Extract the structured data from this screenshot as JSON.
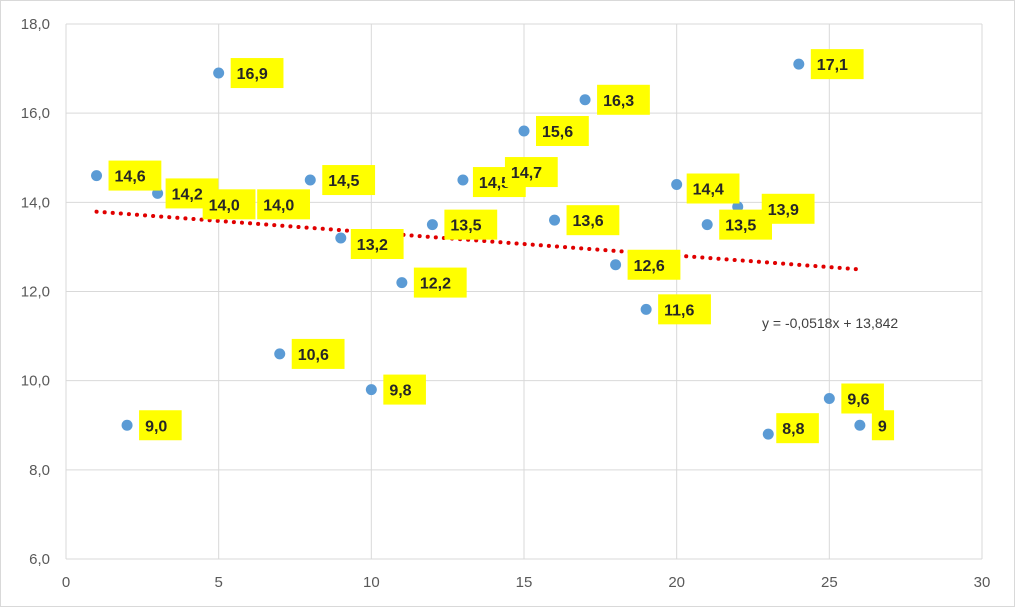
{
  "chart_data": {
    "type": "scatter",
    "title": "",
    "xlabel": "",
    "ylabel": "",
    "xlim": [
      0,
      30
    ],
    "ylim": [
      6,
      18
    ],
    "x_ticks": [
      "0",
      "5",
      "10",
      "15",
      "20",
      "25",
      "30"
    ],
    "y_ticks": [
      "6,0",
      "8,0",
      "10,0",
      "12,0",
      "14,0",
      "16,0",
      "18,0"
    ],
    "grid": true,
    "legend": "none",
    "colors": {
      "marker": "#5b9bd5",
      "trendline": "#e00000",
      "label_background": "#ffff00",
      "grid": "#d9d9d9"
    },
    "series": [
      {
        "points": [
          {
            "x": 1,
            "y": 14.6,
            "label": "14,6"
          },
          {
            "x": 2,
            "y": 9.0,
            "label": "9,0"
          },
          {
            "x": 3,
            "y": 14.2,
            "label": "14,2"
          },
          {
            "x": 5,
            "y": 16.9,
            "label": "16,9"
          },
          {
            "x": 5,
            "y": 14.0,
            "label": "14,0"
          },
          {
            "x": 6,
            "y": 14.0,
            "label": "14,0"
          },
          {
            "x": 7,
            "y": 10.6,
            "label": "10,6"
          },
          {
            "x": 8,
            "y": 14.5,
            "label": "14,5"
          },
          {
            "x": 9,
            "y": 13.2,
            "label": "13,2"
          },
          {
            "x": 10,
            "y": 9.8,
            "label": "9,8"
          },
          {
            "x": 11,
            "y": 12.2,
            "label": "12,2"
          },
          {
            "x": 12,
            "y": 13.5,
            "label": "13,5"
          },
          {
            "x": 13,
            "y": 14.5,
            "label": "14,5"
          },
          {
            "x": 15,
            "y": 15.6,
            "label": "15,6"
          },
          {
            "x": 16,
            "y": 13.6,
            "label": "13,6"
          },
          {
            "x": 17,
            "y": 16.3,
            "label": "16,3"
          },
          {
            "x": 18,
            "y": 12.6,
            "label": "12,6"
          },
          {
            "x": 19,
            "y": 11.6,
            "label": "11,6"
          },
          {
            "x": 20,
            "y": 14.4,
            "label": "14,4"
          },
          {
            "x": 21,
            "y": 13.5,
            "label": "13,5"
          },
          {
            "x": 22,
            "y": 13.9,
            "label": "13,9"
          },
          {
            "x": 23,
            "y": 8.8,
            "label": "8,8"
          },
          {
            "x": 24,
            "y": 17.1,
            "label": "17,1"
          },
          {
            "x": 25,
            "y": 9.6,
            "label": "9,6"
          },
          {
            "x": 26,
            "y": 9.0,
            "label": "9"
          }
        ],
        "extra_labels": [
          {
            "text": "14,7",
            "near_point": 12
          }
        ]
      }
    ],
    "trendline": {
      "type": "linear",
      "slope": -0.0518,
      "intercept": 13.842,
      "x_range": [
        1,
        26
      ],
      "equation_text": "y = -0,0518x + 13,842"
    }
  }
}
